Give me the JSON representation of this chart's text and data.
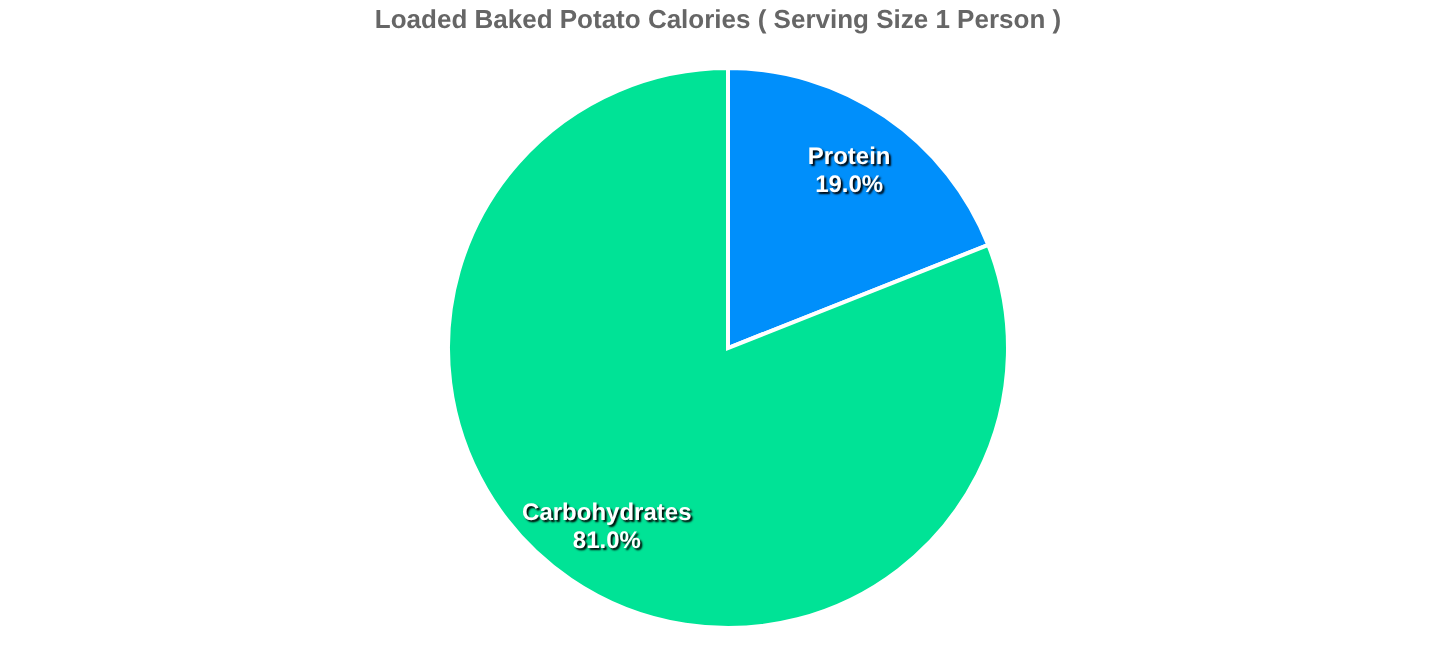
{
  "chart_data": {
    "type": "pie",
    "title": "Loaded Baked Potato Calories ( Serving Size 1 Person )",
    "categories": [
      "Protein",
      "Carbohydrates"
    ],
    "values": [
      19,
      81
    ],
    "value_labels": [
      "19.0%",
      "81.0%"
    ],
    "colors": [
      "#008ffb",
      "#00e396"
    ],
    "legend": false
  }
}
